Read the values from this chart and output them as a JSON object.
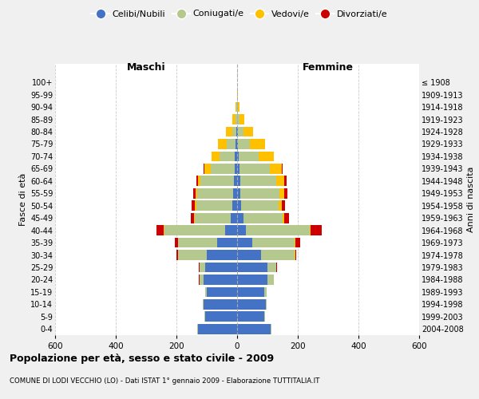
{
  "age_groups": [
    "0-4",
    "5-9",
    "10-14",
    "15-19",
    "20-24",
    "25-29",
    "30-34",
    "35-39",
    "40-44",
    "45-49",
    "50-54",
    "55-59",
    "60-64",
    "65-69",
    "70-74",
    "75-79",
    "80-84",
    "85-89",
    "90-94",
    "95-99",
    "100+"
  ],
  "birth_years": [
    "2004-2008",
    "1999-2003",
    "1994-1998",
    "1989-1993",
    "1984-1988",
    "1979-1983",
    "1974-1978",
    "1969-1973",
    "1964-1968",
    "1959-1963",
    "1954-1958",
    "1949-1953",
    "1944-1948",
    "1939-1943",
    "1934-1938",
    "1929-1933",
    "1924-1928",
    "1919-1923",
    "1914-1918",
    "1909-1913",
    "≤ 1908"
  ],
  "colors": {
    "celibi": "#4472c4",
    "coniugati": "#b5c98e",
    "vedovi": "#ffc000",
    "divorziati": "#cc0000"
  },
  "maschi": {
    "celibi": [
      130,
      105,
      110,
      100,
      110,
      105,
      100,
      65,
      40,
      20,
      15,
      12,
      10,
      8,
      8,
      4,
      2,
      1,
      0,
      0,
      0
    ],
    "coniugati": [
      2,
      2,
      2,
      5,
      15,
      20,
      95,
      130,
      200,
      120,
      120,
      120,
      110,
      80,
      50,
      30,
      15,
      5,
      2,
      0,
      0
    ],
    "vedovi": [
      0,
      0,
      0,
      0,
      0,
      0,
      1,
      1,
      2,
      3,
      5,
      5,
      10,
      20,
      25,
      30,
      20,
      10,
      3,
      1,
      0
    ],
    "divorziati": [
      0,
      0,
      0,
      0,
      1,
      2,
      5,
      10,
      25,
      10,
      10,
      8,
      5,
      2,
      0,
      0,
      0,
      0,
      0,
      0,
      0
    ]
  },
  "femmine": {
    "celibi": [
      110,
      90,
      95,
      90,
      100,
      100,
      80,
      50,
      30,
      20,
      12,
      10,
      10,
      8,
      5,
      3,
      2,
      1,
      0,
      0,
      0
    ],
    "coniugati": [
      2,
      2,
      3,
      8,
      20,
      30,
      110,
      140,
      210,
      130,
      125,
      130,
      120,
      100,
      65,
      40,
      20,
      8,
      2,
      0,
      0
    ],
    "vedovi": [
      0,
      0,
      0,
      0,
      0,
      0,
      1,
      2,
      3,
      5,
      10,
      15,
      25,
      40,
      50,
      50,
      30,
      15,
      5,
      2,
      1
    ],
    "divorziati": [
      0,
      0,
      0,
      0,
      1,
      2,
      5,
      15,
      35,
      15,
      12,
      10,
      8,
      3,
      2,
      0,
      0,
      0,
      0,
      0,
      0
    ]
  },
  "xlim": 600,
  "title": "Popolazione per età, sesso e stato civile - 2009",
  "subtitle": "COMUNE DI LODI VECCHIO (LO) - Dati ISTAT 1° gennaio 2009 - Elaborazione TUTTITALIA.IT",
  "ylabel_left": "Fasce di età",
  "ylabel_right": "Anni di nascita",
  "xlabel_maschi": "Maschi",
  "xlabel_femmine": "Femmine",
  "bg_color": "#f0f0f0",
  "plot_bg_color": "#ffffff",
  "grid_color": "#cccccc"
}
